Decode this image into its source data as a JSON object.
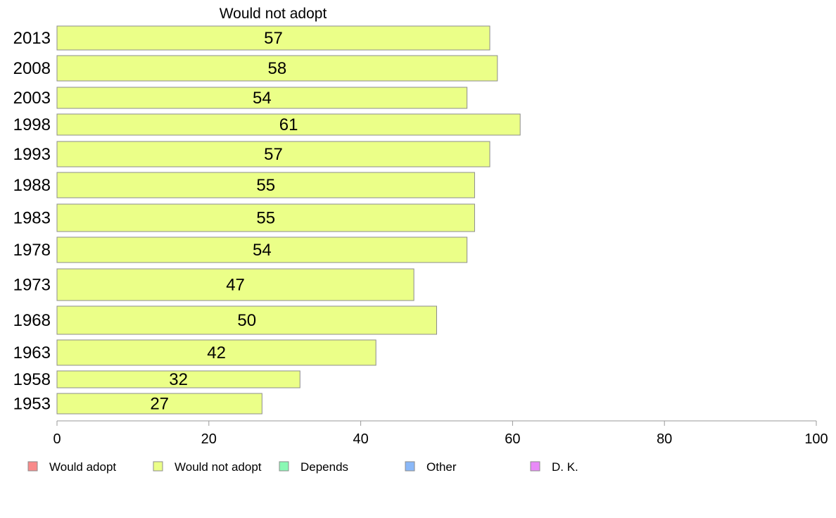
{
  "chart_data": {
    "type": "bar",
    "orientation": "horizontal",
    "title": "Would not adopt",
    "categories": [
      "2013",
      "2008",
      "2003",
      "1998",
      "1993",
      "1988",
      "1983",
      "1978",
      "1973",
      "1968",
      "1963",
      "1958",
      "1953"
    ],
    "series": [
      {
        "name": "Would not adopt",
        "color": "#ebff88",
        "values": [
          57,
          58,
          54,
          61,
          57,
          55,
          55,
          54,
          47,
          50,
          42,
          32,
          27
        ]
      }
    ],
    "xlim": [
      0,
      100
    ],
    "xticks": [
      0,
      20,
      40,
      60,
      80,
      100
    ],
    "grid": false,
    "legend_position": "bottom",
    "legend": [
      {
        "label": "Would adopt",
        "color": "#f88a8a"
      },
      {
        "label": "Would not adopt",
        "color": "#ebff88"
      },
      {
        "label": "Depends",
        "color": "#8af8b4"
      },
      {
        "label": "Other",
        "color": "#8ab8f8"
      },
      {
        "label": "D. K.",
        "color": "#e88af8"
      }
    ]
  }
}
